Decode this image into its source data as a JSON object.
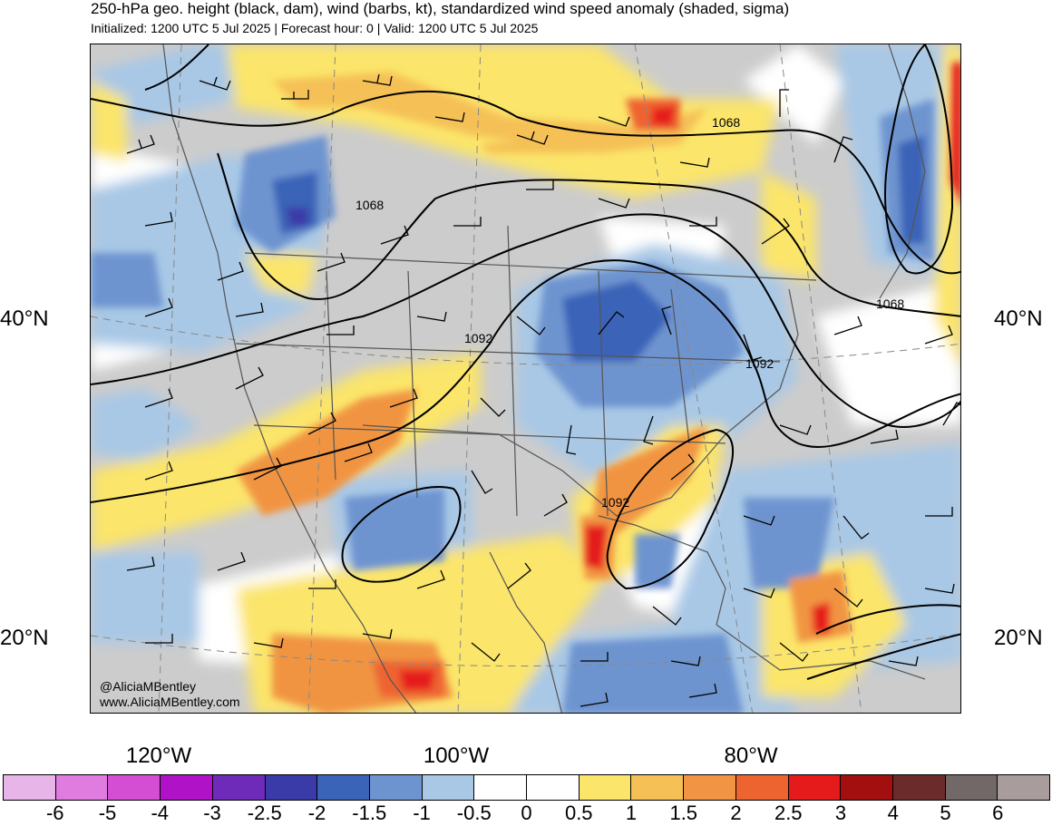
{
  "title": "250-hPa geo. height (black, dam), wind (barbs, kt), standardized wind speed anomaly (shaded, sigma)",
  "subtitle": "Initialized: 1200 UTC 5 Jul 2025 | Forecast hour: 0 | Valid: 1200 UTC 5 Jul 2025",
  "lat_labels": {
    "lat40_left": "40°N",
    "lat20_left": "20°N",
    "lat40_right": "40°N",
    "lat20_right": "20°N"
  },
  "lon_labels": {
    "lon120": "120°W",
    "lon100": "100°W",
    "lon80": "80°W"
  },
  "contour_labels": [
    "1068",
    "1068",
    "1068",
    "1092",
    "1092",
    "1092"
  ],
  "credits": {
    "handle": "@AliciaMBentley",
    "website": "www.AliciaMBentley.com"
  },
  "colorbar": {
    "colors": [
      "#e8b5e8",
      "#e07be0",
      "#d44ed4",
      "#b012c8",
      "#6e2ab8",
      "#3a3aa8",
      "#3a64b8",
      "#6e94d0",
      "#a8c8e6",
      "#ffffff",
      "#ffffff",
      "#fbe56a",
      "#f5c157",
      "#f19443",
      "#ee6430",
      "#e51a1a",
      "#a30e0e",
      "#6b2b2b",
      "#726868",
      "#a89c9c"
    ],
    "labels": [
      "-6",
      "-5",
      "-4",
      "-3",
      "-2.5",
      "-2",
      "-1.5",
      "-1",
      "-0.5",
      "0",
      "0.5",
      "1",
      "1.5",
      "2",
      "2.5",
      "3",
      "4",
      "5",
      "6"
    ]
  },
  "colors": {
    "land_neutral": "#cccccc",
    "contour": "#000000",
    "borders": "#555555"
  }
}
